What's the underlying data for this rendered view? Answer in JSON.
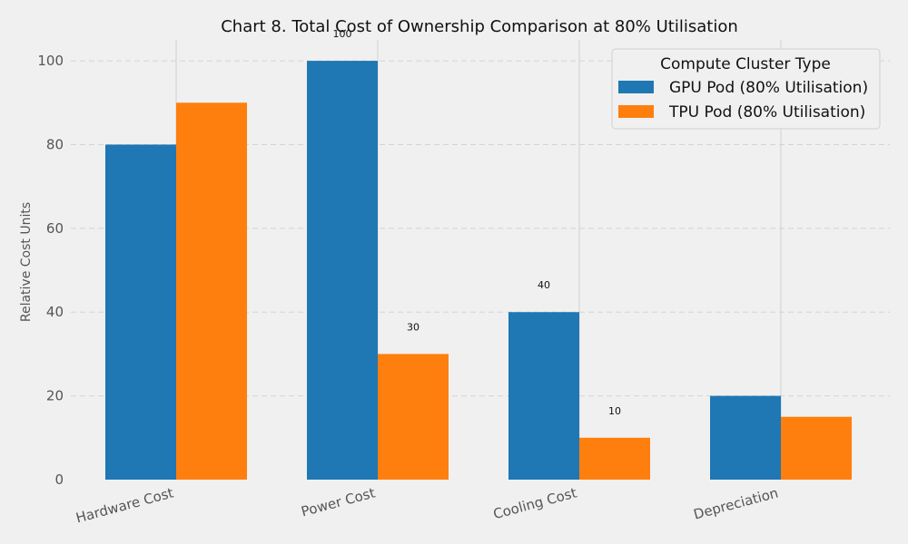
{
  "chart_data": {
    "type": "bar",
    "title": "Chart 8. Total Cost of Ownership Comparison at 80% Utilisation",
    "xlabel": "",
    "ylabel": "Relative Cost Units",
    "categories": [
      "Hardware Cost",
      "Power Cost",
      "Cooling Cost",
      "Depreciation"
    ],
    "series": [
      {
        "name": "GPU Pod (80% Utilisation)",
        "values": [
          80,
          100,
          40,
          20
        ],
        "color": "#1f77b4"
      },
      {
        "name": "TPU Pod (80% Utilisation)",
        "values": [
          90,
          30,
          10,
          15
        ],
        "color": "#ff7f0e"
      }
    ],
    "data_labels": [
      {
        "series": 0,
        "category": 1,
        "text": "100"
      },
      {
        "series": 1,
        "category": 1,
        "text": "30"
      },
      {
        "series": 0,
        "category": 2,
        "text": "40"
      },
      {
        "series": 1,
        "category": 2,
        "text": "10"
      }
    ],
    "ylim": [
      0,
      105
    ],
    "yticks": [
      0,
      20,
      40,
      60,
      80,
      100
    ],
    "grid": true,
    "legend": {
      "title": "Compute Cluster Type",
      "placement": "top-right"
    }
  }
}
